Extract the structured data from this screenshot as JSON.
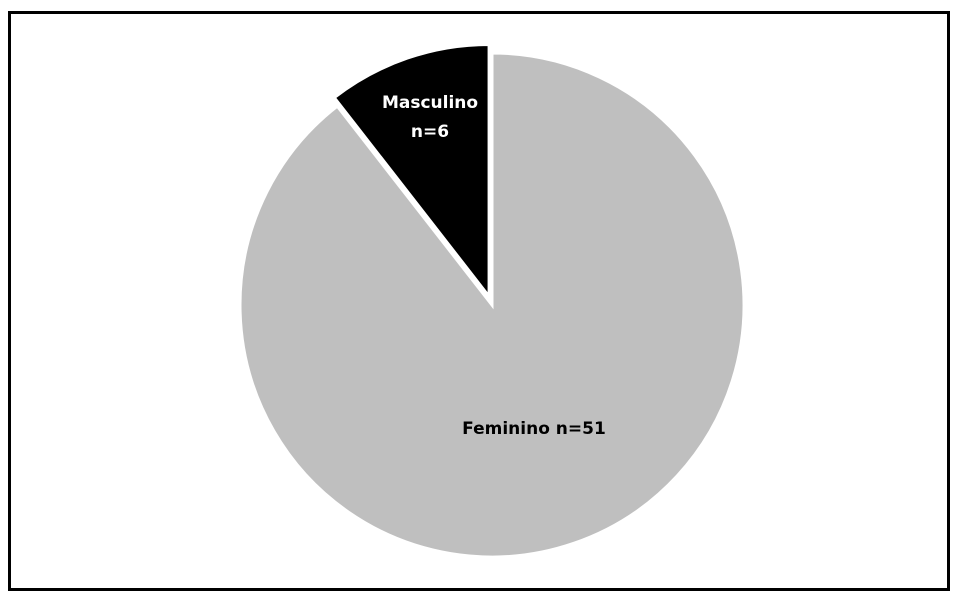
{
  "chart_data": {
    "type": "pie",
    "slices": [
      {
        "name": "Feminino",
        "label": "Feminino n=51",
        "value": 51,
        "color": "#bfbfbf",
        "text_color": "#000000"
      },
      {
        "name": "Masculino",
        "label_lines": [
          "Masculino",
          "n=6"
        ],
        "value": 6,
        "color": "#000000",
        "text_color": "#ffffff"
      }
    ],
    "start": "12 o'clock",
    "direction": "clockwise",
    "exploded_slice": "Masculino",
    "legend": "none"
  }
}
